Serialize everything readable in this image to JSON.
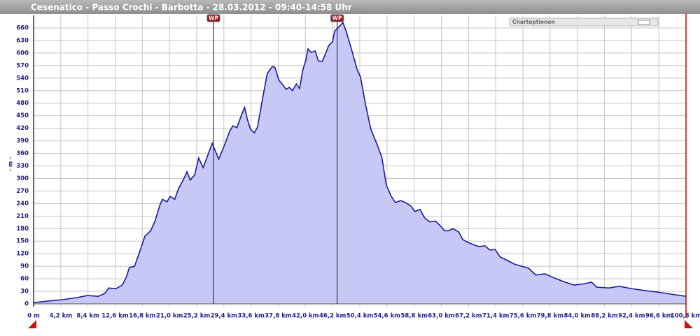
{
  "chart_data": {
    "type": "area",
    "title": "Cesenatico - Passo Crochi - Barbotta - 28.03.2012 - 09:40-14:58 Uhr",
    "ylabel": "- m -",
    "options_label": "Chartoptionen",
    "x": [
      0,
      2.4,
      4.5,
      6.7,
      8.3,
      10.0,
      11.0,
      11.6,
      12.7,
      13.7,
      14.3,
      14.8,
      15.6,
      16.4,
      17.2,
      18.1,
      18.8,
      19.5,
      19.9,
      20.6,
      21.1,
      21.8,
      22.4,
      23.1,
      23.7,
      24.2,
      24.9,
      25.5,
      26.2,
      26.8,
      27.6,
      28.6,
      29.4,
      30.3,
      30.8,
      31.4,
      32.1,
      32.6,
      33.0,
      33.5,
      34.1,
      34.6,
      35.4,
      36.1,
      36.9,
      37.3,
      37.9,
      38.4,
      39.0,
      39.5,
      40.0,
      40.6,
      41.1,
      41.6,
      42.1,
      42.4,
      42.9,
      43.5,
      44.0,
      44.6,
      45.1,
      45.6,
      46.2,
      46.5,
      47.2,
      47.8,
      48.3,
      49.1,
      50.0,
      50.5,
      51.3,
      52.1,
      53.0,
      53.8,
      54.5,
      55.2,
      55.9,
      56.7,
      57.5,
      58.3,
      58.9,
      59.7,
      60.4,
      61.2,
      62.1,
      62.7,
      63.5,
      64.1,
      64.8,
      65.7,
      66.3,
      67.1,
      67.9,
      68.8,
      69.7,
      70.5,
      71.3,
      72.1,
      73.2,
      74.3,
      75.4,
      76.5,
      77.6,
      79.0,
      80.3,
      81.9,
      83.5,
      85.1,
      86.2,
      87.0,
      88.9,
      90.5,
      92.2,
      94.3,
      96.5,
      98.6,
      100.8
    ],
    "values": [
      3,
      7,
      10,
      15,
      20,
      18,
      25,
      38,
      36,
      45,
      63,
      87,
      90,
      125,
      162,
      175,
      200,
      236,
      250,
      244,
      257,
      250,
      276,
      296,
      316,
      296,
      309,
      349,
      326,
      351,
      384,
      346,
      376,
      413,
      426,
      421,
      451,
      470,
      443,
      418,
      409,
      423,
      493,
      551,
      568,
      565,
      535,
      526,
      513,
      518,
      510,
      526,
      515,
      560,
      585,
      610,
      601,
      605,
      581,
      580,
      598,
      618,
      627,
      652,
      663,
      673,
      652,
      610,
      560,
      543,
      476,
      418,
      384,
      351,
      284,
      259,
      242,
      247,
      242,
      234,
      221,
      226,
      206,
      196,
      198,
      189,
      175,
      175,
      180,
      172,
      154,
      147,
      142,
      137,
      139,
      129,
      130,
      112,
      104,
      95,
      90,
      85,
      69,
      72,
      63,
      53,
      45,
      48,
      52,
      40,
      38,
      42,
      37,
      32,
      28,
      23,
      18
    ],
    "fill": "#c8c8f6",
    "color": "#1a1a9e",
    "xlim": [
      0,
      100.8
    ],
    "ylim": [
      0,
      660
    ],
    "xticks": [
      {
        "value": 0,
        "label": "0 m"
      },
      {
        "value": 4.2,
        "label": "4,2 km"
      },
      {
        "value": 8.4,
        "label": "8,4 km"
      },
      {
        "value": 12.6,
        "label": "12,6 km"
      },
      {
        "value": 16.8,
        "label": "16,8 km"
      },
      {
        "value": 21.0,
        "label": "21,0 km"
      },
      {
        "value": 25.2,
        "label": "25,2 km"
      },
      {
        "value": 29.4,
        "label": "29,4 km"
      },
      {
        "value": 33.6,
        "label": "33,6 km"
      },
      {
        "value": 37.8,
        "label": "37,8 km"
      },
      {
        "value": 42.0,
        "label": "42,0 km"
      },
      {
        "value": 46.2,
        "label": "46,2 km"
      },
      {
        "value": 50.4,
        "label": "50,4 km"
      },
      {
        "value": 54.6,
        "label": "54,6 km"
      },
      {
        "value": 58.8,
        "label": "58,8 km"
      },
      {
        "value": 63.0,
        "label": "63,0 km"
      },
      {
        "value": 67.2,
        "label": "67,2 km"
      },
      {
        "value": 71.4,
        "label": "71,4 km"
      },
      {
        "value": 75.6,
        "label": "75,6 km"
      },
      {
        "value": 79.8,
        "label": "79,8 km"
      },
      {
        "value": 84.0,
        "label": "84,0 km"
      },
      {
        "value": 88.2,
        "label": "88,2 km"
      },
      {
        "value": 92.4,
        "label": "92,4 km"
      },
      {
        "value": 96.6,
        "label": "96,6 km"
      },
      {
        "value": 100.8,
        "label": "100,8 km"
      }
    ],
    "yticks": [
      0,
      30,
      60,
      90,
      120,
      150,
      180,
      210,
      240,
      270,
      300,
      330,
      360,
      390,
      420,
      450,
      480,
      510,
      540,
      570,
      600,
      630,
      660
    ],
    "grid": true,
    "markers": [
      {
        "label": "WP",
        "x": 27.8
      },
      {
        "label": "WP",
        "x": 46.9
      }
    ]
  }
}
